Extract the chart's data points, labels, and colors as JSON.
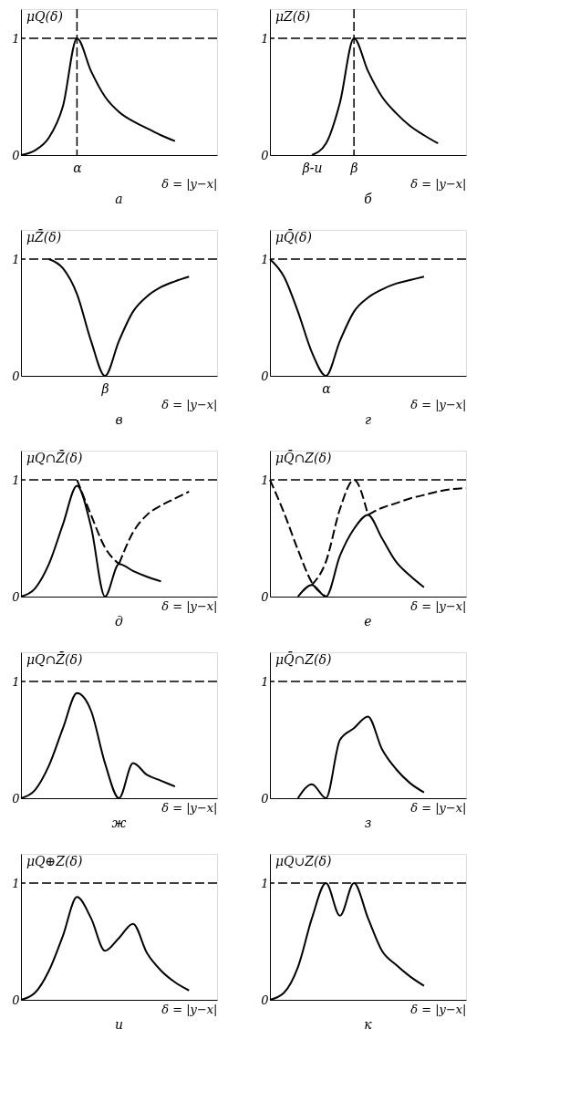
{
  "chart_data": [
    {
      "type": "line",
      "title": "а",
      "ylabel": "μQ(δ)",
      "xlabel": "δ = |y−x|",
      "categories": [
        null,
        null,
        null,
        null,
        "α",
        null,
        null,
        null,
        null,
        null,
        null,
        null,
        null,
        null,
        null
      ],
      "ylim": [
        0,
        1.25
      ],
      "yticks": [
        0,
        1
      ],
      "series": [
        {
          "color": "#000000",
          "line_style": "solid",
          "values": [
            0,
            0.04,
            0.15,
            0.42,
            1,
            0.72,
            0.5,
            0.37,
            0.29,
            0.23,
            0.17,
            0.12,
            null,
            null,
            null
          ]
        }
      ],
      "ref_lines": [
        {
          "axis": "y",
          "value": 1,
          "line_style": "dashed"
        },
        {
          "axis": "x",
          "value": "α",
          "line_style": "dashed"
        }
      ]
    },
    {
      "type": "line",
      "title": "б",
      "ylabel": "μZ(δ)",
      "xlabel": "δ = |y−x|",
      "categories": [
        null,
        null,
        null,
        "β-u",
        null,
        null,
        "β",
        null,
        null,
        null,
        null,
        null,
        null,
        null,
        null
      ],
      "ylim": [
        0,
        1.25
      ],
      "yticks": [
        0,
        1
      ],
      "series": [
        {
          "color": "#000000",
          "line_style": "solid",
          "values": [
            null,
            null,
            null,
            0,
            0.1,
            0.45,
            1,
            0.72,
            0.5,
            0.36,
            0.25,
            0.17,
            0.1,
            null,
            null
          ]
        }
      ],
      "ref_lines": [
        {
          "axis": "y",
          "value": 1,
          "line_style": "dashed"
        },
        {
          "axis": "x",
          "value": "β",
          "line_style": "dashed"
        }
      ]
    },
    {
      "type": "line",
      "title": "в",
      "ylabel": "μZ̄(δ)",
      "xlabel": "δ = |y−x|",
      "categories": [
        null,
        null,
        null,
        null,
        null,
        null,
        "β",
        null,
        null,
        null,
        null,
        null,
        null,
        null,
        null
      ],
      "ylim": [
        0,
        1.25
      ],
      "yticks": [
        0,
        1
      ],
      "series": [
        {
          "color": "#000000",
          "line_style": "solid",
          "values": [
            null,
            null,
            1,
            0.92,
            0.7,
            0.3,
            0,
            0.3,
            0.55,
            0.68,
            0.76,
            0.81,
            0.85,
            null,
            null
          ]
        }
      ],
      "ref_lines": [
        {
          "axis": "y",
          "value": 1,
          "line_style": "dashed"
        }
      ]
    },
    {
      "type": "line",
      "title": "г",
      "ylabel": "μQ̄(δ)",
      "xlabel": "δ = |y−x|",
      "categories": [
        null,
        null,
        null,
        null,
        "α",
        null,
        null,
        null,
        null,
        null,
        null,
        null,
        null,
        null,
        null
      ],
      "ylim": [
        0,
        1.25
      ],
      "yticks": [
        0,
        1
      ],
      "series": [
        {
          "color": "#000000",
          "line_style": "solid",
          "values": [
            1,
            0.85,
            0.55,
            0.2,
            0,
            0.3,
            0.55,
            0.67,
            0.74,
            0.79,
            0.82,
            0.85,
            null,
            null,
            null
          ]
        }
      ],
      "ref_lines": [
        {
          "axis": "y",
          "value": 1,
          "line_style": "dashed"
        }
      ]
    },
    {
      "type": "line",
      "title": "д",
      "ylabel": "μQ∩Z̄(δ)",
      "xlabel": "δ = |y−x|",
      "categories": [
        null,
        null,
        null,
        null,
        null,
        null,
        null,
        null,
        null,
        null,
        null,
        null,
        null,
        null,
        null
      ],
      "ylim": [
        0,
        1.25
      ],
      "yticks": [
        0,
        1
      ],
      "series": [
        {
          "color": "#000000",
          "line_style": "solid",
          "values": [
            0,
            0.07,
            0.28,
            0.62,
            0.95,
            0.6,
            0,
            0.28,
            0.22,
            0.17,
            0.13,
            null,
            null,
            null,
            null
          ]
        },
        {
          "color": "#000000",
          "line_style": "dashed",
          "values": [
            null,
            null,
            null,
            null,
            1,
            0.7,
            0.42,
            0.28,
            null,
            null,
            null,
            null,
            null,
            null,
            null
          ]
        },
        {
          "color": "#000000",
          "line_style": "dashed",
          "values": [
            null,
            null,
            null,
            null,
            null,
            null,
            null,
            0.28,
            0.55,
            0.7,
            0.78,
            0.84,
            0.9,
            null,
            null
          ]
        }
      ],
      "ref_lines": [
        {
          "axis": "y",
          "value": 1,
          "line_style": "dashed"
        }
      ]
    },
    {
      "type": "line",
      "title": "е",
      "ylabel": "μQ̄∩Z(δ)",
      "xlabel": "δ = |y−x|",
      "categories": [
        null,
        null,
        null,
        null,
        null,
        null,
        null,
        null,
        null,
        null,
        null,
        null,
        null,
        null,
        null
      ],
      "ylim": [
        0,
        1.25
      ],
      "yticks": [
        0,
        1
      ],
      "series": [
        {
          "color": "#000000",
          "line_style": "solid",
          "values": [
            null,
            null,
            0,
            0.1,
            0,
            0.35,
            0.58,
            0.7,
            0.5,
            0.3,
            0.18,
            0.08,
            null,
            null,
            null
          ]
        },
        {
          "color": "#000000",
          "line_style": "dashed",
          "values": [
            1,
            0.72,
            0.4,
            0.12,
            0,
            null,
            null,
            0.7,
            0.76,
            0.8,
            0.84,
            0.87,
            0.9,
            0.92,
            0.93
          ]
        },
        {
          "color": "#000000",
          "line_style": "dashed",
          "values": [
            null,
            null,
            null,
            0.1,
            0.3,
            0.75,
            1,
            0.7,
            null,
            null,
            null,
            null,
            null,
            null,
            null
          ]
        }
      ],
      "ref_lines": [
        {
          "axis": "y",
          "value": 1,
          "line_style": "dashed"
        }
      ]
    },
    {
      "type": "line",
      "title": "ж",
      "ylabel": "μQ∩Z̄(δ)",
      "xlabel": "δ = |y−x|",
      "categories": [
        null,
        null,
        null,
        null,
        null,
        null,
        null,
        null,
        null,
        null,
        null,
        null,
        null,
        null,
        null
      ],
      "ylim": [
        0,
        1.25
      ],
      "yticks": [
        0,
        1
      ],
      "series": [
        {
          "color": "#000000",
          "line_style": "solid",
          "values": [
            0,
            0.07,
            0.28,
            0.6,
            0.9,
            0.75,
            0.3,
            0,
            0.3,
            0.2,
            0.15,
            0.1,
            null,
            null,
            null
          ]
        }
      ],
      "ref_lines": [
        {
          "axis": "y",
          "value": 1,
          "line_style": "dashed"
        }
      ]
    },
    {
      "type": "line",
      "title": "з",
      "ylabel": "μQ̄∩Z(δ)",
      "xlabel": "δ = |y−x|",
      "categories": [
        null,
        null,
        null,
        null,
        null,
        null,
        null,
        null,
        null,
        null,
        null,
        null,
        null,
        null,
        null
      ],
      "ylim": [
        0,
        1.25
      ],
      "yticks": [
        0,
        1
      ],
      "series": [
        {
          "color": "#000000",
          "line_style": "solid",
          "values": [
            null,
            null,
            0,
            0.12,
            0,
            0.5,
            0.6,
            0.7,
            0.42,
            0.25,
            0.13,
            0.05,
            null,
            null,
            null
          ]
        }
      ],
      "ref_lines": [
        {
          "axis": "y",
          "value": 1,
          "line_style": "dashed"
        }
      ]
    },
    {
      "type": "line",
      "title": "и",
      "ylabel": "μQ⊕Z(δ)",
      "xlabel": "δ = |y−x|",
      "categories": [
        null,
        null,
        null,
        null,
        null,
        null,
        null,
        null,
        null,
        null,
        null,
        null,
        null,
        null,
        null
      ],
      "ylim": [
        0,
        1.25
      ],
      "yticks": [
        0,
        1
      ],
      "series": [
        {
          "color": "#000000",
          "line_style": "solid",
          "values": [
            0,
            0.06,
            0.25,
            0.55,
            0.88,
            0.7,
            0.42,
            0.53,
            0.65,
            0.4,
            0.25,
            0.15,
            0.08,
            null,
            null
          ]
        }
      ],
      "ref_lines": [
        {
          "axis": "y",
          "value": 1,
          "line_style": "dashed"
        }
      ]
    },
    {
      "type": "line",
      "title": "к",
      "ylabel": "μQ∪Z(δ)",
      "xlabel": "δ = |y−x|",
      "categories": [
        null,
        null,
        null,
        null,
        null,
        null,
        null,
        null,
        null,
        null,
        null,
        null,
        null,
        null,
        null
      ],
      "ylim": [
        0,
        1.25
      ],
      "yticks": [
        0,
        1
      ],
      "series": [
        {
          "color": "#000000",
          "line_style": "solid",
          "values": [
            0,
            0.06,
            0.28,
            0.7,
            1,
            0.72,
            1,
            0.7,
            0.42,
            0.3,
            0.2,
            0.12,
            null,
            null,
            null
          ]
        }
      ],
      "ref_lines": [
        {
          "axis": "y",
          "value": 1,
          "line_style": "dashed"
        }
      ]
    }
  ]
}
